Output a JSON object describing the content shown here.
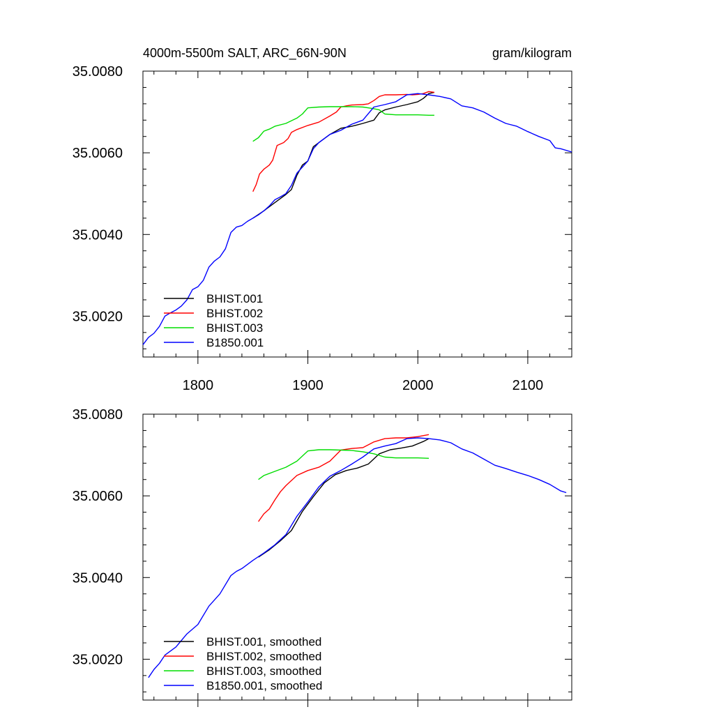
{
  "header": {
    "title": "4000m-5500m SALT, ARC_66N-90N",
    "units": "gram/kilogram"
  },
  "colors": {
    "BHIST.001": "#000000",
    "BHIST.002": "#ff0000",
    "BHIST.003": "#00dd00",
    "B1850.001": "#0000ff"
  },
  "chart_data": [
    {
      "type": "line",
      "title": "4000m-5500m SALT, ARC_66N-90N",
      "units": "gram/kilogram",
      "xlim": [
        1750,
        2140
      ],
      "ylim": [
        35.001,
        35.008
      ],
      "xticks": [
        1800,
        1900,
        2000,
        2100
      ],
      "xtick_labels": [
        "1800",
        "1900",
        "2000",
        "2100"
      ],
      "yticks": [
        35.002,
        35.004,
        35.006,
        35.008
      ],
      "ytick_labels": [
        "35.0020",
        "35.0040",
        "35.0060",
        "35.0080"
      ],
      "grid": false,
      "legend_position": "bottom-left",
      "series": [
        {
          "name": "BHIST.001",
          "color": "#000000",
          "x": [
            1850,
            1860,
            1870,
            1880,
            1885,
            1890,
            1895,
            1900,
            1905,
            1910,
            1920,
            1930,
            1940,
            1950,
            1960,
            1965,
            1970,
            1980,
            1990,
            2000,
            2005,
            2010,
            2015
          ],
          "y": [
            35.0044,
            35.00458,
            35.00478,
            35.00498,
            35.0051,
            35.00545,
            35.0057,
            35.0058,
            35.00615,
            35.00625,
            35.00645,
            35.0066,
            35.00665,
            35.00672,
            35.0068,
            35.00698,
            35.00705,
            35.00712,
            35.00718,
            35.00725,
            35.00733,
            35.00745,
            35.00748
          ]
        },
        {
          "name": "BHIST.002",
          "color": "#ff0000",
          "x": [
            1850,
            1853,
            1856,
            1860,
            1865,
            1868,
            1872,
            1878,
            1882,
            1885,
            1890,
            1900,
            1910,
            1920,
            1926,
            1930,
            1935,
            1940,
            1950,
            1955,
            1960,
            1965,
            1970,
            1980,
            1990,
            1995,
            2000,
            2005,
            2010,
            2015
          ],
          "y": [
            35.00505,
            35.00522,
            35.00548,
            35.0056,
            35.0057,
            35.00582,
            35.00618,
            35.00625,
            35.00635,
            35.0065,
            35.00657,
            35.00667,
            35.00675,
            35.0069,
            35.007,
            35.00712,
            35.00715,
            35.00717,
            35.00718,
            35.0072,
            35.00728,
            35.00738,
            35.00742,
            35.00742,
            35.00743,
            35.00742,
            35.00743,
            35.00745,
            35.0075,
            35.00748
          ]
        },
        {
          "name": "BHIST.003",
          "color": "#00dd00",
          "x": [
            1850,
            1855,
            1860,
            1865,
            1870,
            1880,
            1890,
            1895,
            1900,
            1910,
            1920,
            1930,
            1940,
            1950,
            1955,
            1960,
            1965,
            1970,
            1980,
            1990,
            2000,
            2010,
            2015
          ],
          "y": [
            35.00628,
            35.00637,
            35.00653,
            35.00658,
            35.00665,
            35.00672,
            35.00685,
            35.00695,
            35.0071,
            35.00712,
            35.00713,
            35.00713,
            35.00713,
            35.00712,
            35.0071,
            35.00708,
            35.00705,
            35.00695,
            35.00693,
            35.00693,
            35.00693,
            35.00692,
            35.00692
          ]
        },
        {
          "name": "B1850.001",
          "color": "#0000ff",
          "x": [
            1750,
            1755,
            1760,
            1765,
            1770,
            1775,
            1780,
            1785,
            1790,
            1795,
            1800,
            1805,
            1810,
            1815,
            1820,
            1825,
            1830,
            1835,
            1840,
            1845,
            1850,
            1855,
            1860,
            1865,
            1870,
            1875,
            1880,
            1885,
            1890,
            1895,
            1900,
            1905,
            1910,
            1920,
            1930,
            1940,
            1950,
            1960,
            1970,
            1980,
            1990,
            2000,
            2010,
            2020,
            2030,
            2040,
            2050,
            2060,
            2070,
            2080,
            2090,
            2100,
            2110,
            2120,
            2125,
            2130,
            2140
          ],
          "y": [
            35.0013,
            35.00148,
            35.00158,
            35.00175,
            35.002,
            35.00208,
            35.00215,
            35.00225,
            35.0024,
            35.00265,
            35.00272,
            35.00288,
            35.0032,
            35.00335,
            35.00345,
            35.00365,
            35.00405,
            35.00418,
            35.00422,
            35.00432,
            35.0044,
            35.00448,
            35.00458,
            35.0047,
            35.00485,
            35.00492,
            35.005,
            35.0052,
            35.0055,
            35.00565,
            35.0058,
            35.0061,
            35.00625,
            35.00645,
            35.00655,
            35.0067,
            35.0068,
            35.00712,
            35.00718,
            35.00725,
            35.00742,
            35.00745,
            35.00742,
            35.00738,
            35.00732,
            35.00715,
            35.0071,
            35.007,
            35.00685,
            35.00672,
            35.00665,
            35.00652,
            35.0064,
            35.0063,
            35.00612,
            35.0061,
            35.00602
          ]
        }
      ]
    },
    {
      "type": "line",
      "xlim": [
        1750,
        2140
      ],
      "ylim": [
        35.001,
        35.008
      ],
      "xticks": [
        1800,
        1900,
        2000,
        2100
      ],
      "xtick_labels": [],
      "yticks": [
        35.002,
        35.004,
        35.006,
        35.008
      ],
      "ytick_labels": [
        "35.0020",
        "35.0040",
        "35.0060",
        "35.0080"
      ],
      "grid": false,
      "legend_position": "bottom-left",
      "series": [
        {
          "name": "BHIST.001, smoothed",
          "color": "#000000",
          "x": [
            1855,
            1865,
            1875,
            1885,
            1895,
            1905,
            1915,
            1925,
            1935,
            1945,
            1955,
            1965,
            1975,
            1985,
            1995,
            2005,
            2010
          ],
          "y": [
            35.0045,
            35.00468,
            35.0049,
            35.00515,
            35.00562,
            35.00598,
            35.00632,
            35.00652,
            35.00662,
            35.00668,
            35.00678,
            35.00703,
            35.00713,
            35.00717,
            35.00722,
            35.00733,
            35.0074
          ]
        },
        {
          "name": "BHIST.002, smoothed",
          "color": "#ff0000",
          "x": [
            1855,
            1860,
            1865,
            1870,
            1875,
            1880,
            1890,
            1900,
            1910,
            1920,
            1930,
            1940,
            1950,
            1960,
            1970,
            1980,
            1990,
            2000,
            2010
          ],
          "y": [
            35.00537,
            35.00556,
            35.00568,
            35.0059,
            35.0061,
            35.00625,
            35.0065,
            35.00662,
            35.0067,
            35.00685,
            35.00712,
            35.00716,
            35.00718,
            35.00732,
            35.0074,
            35.00742,
            35.00742,
            35.00745,
            35.0075
          ]
        },
        {
          "name": "BHIST.003, smoothed",
          "color": "#00dd00",
          "x": [
            1855,
            1860,
            1870,
            1880,
            1890,
            1900,
            1910,
            1920,
            1930,
            1940,
            1950,
            1960,
            1970,
            1980,
            1990,
            2000,
            2010
          ],
          "y": [
            35.0064,
            35.0065,
            35.0066,
            35.0067,
            35.00685,
            35.0071,
            35.00713,
            35.00713,
            35.00712,
            35.00711,
            35.00708,
            35.00703,
            35.00695,
            35.00693,
            35.00693,
            35.00693,
            35.00692
          ]
        },
        {
          "name": "B1850.001, smoothed",
          "color": "#0000ff",
          "x": [
            1755,
            1760,
            1765,
            1770,
            1780,
            1790,
            1800,
            1810,
            1820,
            1830,
            1835,
            1840,
            1850,
            1860,
            1870,
            1880,
            1890,
            1900,
            1910,
            1920,
            1930,
            1940,
            1950,
            1960,
            1970,
            1980,
            1990,
            2000,
            2010,
            2020,
            2030,
            2040,
            2050,
            2060,
            2070,
            2080,
            2090,
            2100,
            2110,
            2120,
            2130,
            2135
          ],
          "y": [
            35.00155,
            35.00175,
            35.0019,
            35.0021,
            35.0023,
            35.00262,
            35.00285,
            35.0033,
            35.0036,
            35.00405,
            35.00415,
            35.00422,
            35.00442,
            35.0046,
            35.0048,
            35.00505,
            35.0055,
            35.00585,
            35.00622,
            35.00648,
            35.00662,
            35.00678,
            35.00695,
            35.00715,
            35.00722,
            35.00728,
            35.0074,
            35.00742,
            35.0074,
            35.00737,
            35.0073,
            35.00715,
            35.00705,
            35.0069,
            35.00675,
            35.00667,
            35.00658,
            35.0065,
            35.0064,
            35.00628,
            35.00612,
            35.00608
          ]
        }
      ]
    }
  ]
}
